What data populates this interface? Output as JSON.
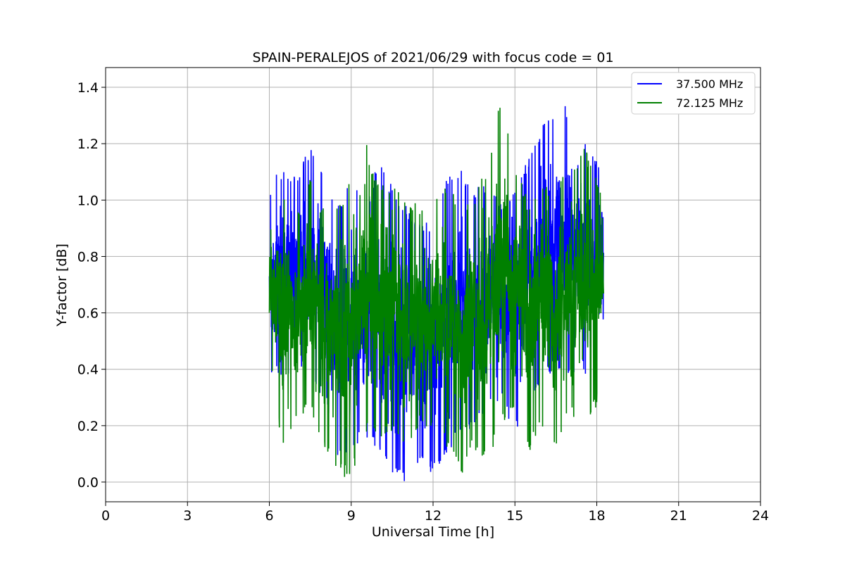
{
  "chart_data": {
    "type": "line",
    "title": "SPAIN-PERALEJOS of 2021/06/29 with focus code = 01",
    "xlabel": "Universal Time [h]",
    "ylabel": "Y-factor [dB]",
    "xlim": [
      0,
      24
    ],
    "ylim": [
      -0.07,
      1.47
    ],
    "xticks": [
      "0",
      "3",
      "6",
      "9",
      "12",
      "15",
      "18",
      "21",
      "24"
    ],
    "yticks": [
      "0.0",
      "0.2",
      "0.4",
      "0.6",
      "0.8",
      "1.0",
      "1.2",
      "1.4"
    ],
    "grid": true,
    "legend_position": "top-right",
    "series": [
      {
        "name": "37.500 MHz",
        "color": "#0000ff",
        "x_range": [
          6.0,
          18.25
        ],
        "envelope_max": [
          [
            6.0,
            1.05
          ],
          [
            6.5,
            1.13
          ],
          [
            7.0,
            1.08
          ],
          [
            7.5,
            1.2
          ],
          [
            8.0,
            1.1
          ],
          [
            8.5,
            0.98
          ],
          [
            9.0,
            1.1
          ],
          [
            9.5,
            0.95
          ],
          [
            10.0,
            1.16
          ],
          [
            10.5,
            1.05
          ],
          [
            11.0,
            0.98
          ],
          [
            11.5,
            0.95
          ],
          [
            12.0,
            0.92
          ],
          [
            12.5,
            1.1
          ],
          [
            13.0,
            1.12
          ],
          [
            13.5,
            1.05
          ],
          [
            14.0,
            1.05
          ],
          [
            14.5,
            1.0
          ],
          [
            15.0,
            1.05
          ],
          [
            15.5,
            1.15
          ],
          [
            16.0,
            1.27
          ],
          [
            16.5,
            1.32
          ],
          [
            17.0,
            1.34
          ],
          [
            17.5,
            1.24
          ],
          [
            18.0,
            1.15
          ],
          [
            18.25,
            1.12
          ]
        ],
        "envelope_min": [
          [
            6.0,
            0.38
          ],
          [
            6.5,
            0.35
          ],
          [
            7.0,
            0.4
          ],
          [
            7.5,
            0.35
          ],
          [
            8.0,
            0.3
          ],
          [
            8.5,
            0.07
          ],
          [
            9.0,
            0.1
          ],
          [
            9.5,
            0.15
          ],
          [
            10.0,
            0.1
          ],
          [
            10.5,
            0.02
          ],
          [
            11.0,
            0.0
          ],
          [
            11.5,
            0.05
          ],
          [
            12.0,
            0.02
          ],
          [
            12.5,
            0.1
          ],
          [
            13.0,
            0.15
          ],
          [
            13.5,
            0.2
          ],
          [
            14.0,
            0.25
          ],
          [
            14.5,
            0.28
          ],
          [
            15.0,
            0.15
          ],
          [
            15.5,
            0.3
          ],
          [
            16.0,
            0.35
          ],
          [
            16.5,
            0.4
          ],
          [
            17.0,
            0.35
          ],
          [
            17.5,
            0.38
          ],
          [
            18.0,
            0.4
          ],
          [
            18.25,
            0.5
          ]
        ]
      },
      {
        "name": "72.125 MHz",
        "color": "#008000",
        "x_range": [
          6.0,
          18.25
        ],
        "envelope_max": [
          [
            6.0,
            1.0
          ],
          [
            6.5,
            1.05
          ],
          [
            7.0,
            0.98
          ],
          [
            7.5,
            1.08
          ],
          [
            8.0,
            0.97
          ],
          [
            8.5,
            0.98
          ],
          [
            9.0,
            1.08
          ],
          [
            9.5,
            1.22
          ],
          [
            10.0,
            1.05
          ],
          [
            10.5,
            1.06
          ],
          [
            11.0,
            1.02
          ],
          [
            11.5,
            0.98
          ],
          [
            12.0,
            1.0
          ],
          [
            12.5,
            1.05
          ],
          [
            13.0,
            1.0
          ],
          [
            13.5,
            1.02
          ],
          [
            14.0,
            1.12
          ],
          [
            14.5,
            1.4
          ],
          [
            15.0,
            1.12
          ],
          [
            15.5,
            1.0
          ],
          [
            16.0,
            1.05
          ],
          [
            16.5,
            1.08
          ],
          [
            17.0,
            1.1
          ],
          [
            17.5,
            1.2
          ],
          [
            18.0,
            1.08
          ],
          [
            18.25,
            1.02
          ]
        ],
        "envelope_min": [
          [
            6.0,
            0.45
          ],
          [
            6.5,
            0.1
          ],
          [
            7.0,
            0.22
          ],
          [
            7.5,
            0.25
          ],
          [
            8.0,
            0.12
          ],
          [
            8.5,
            0.03
          ],
          [
            9.0,
            0.0
          ],
          [
            9.5,
            0.18
          ],
          [
            10.0,
            0.15
          ],
          [
            10.5,
            0.17
          ],
          [
            11.0,
            0.12
          ],
          [
            11.5,
            0.2
          ],
          [
            12.0,
            0.18
          ],
          [
            12.5,
            0.12
          ],
          [
            13.0,
            0.01
          ],
          [
            13.5,
            0.12
          ],
          [
            14.0,
            0.05
          ],
          [
            14.5,
            0.2
          ],
          [
            15.0,
            0.22
          ],
          [
            15.5,
            0.1
          ],
          [
            16.0,
            0.2
          ],
          [
            16.5,
            0.1
          ],
          [
            17.0,
            0.25
          ],
          [
            17.5,
            0.18
          ],
          [
            18.0,
            0.27
          ],
          [
            18.25,
            0.5
          ]
        ]
      }
    ]
  }
}
